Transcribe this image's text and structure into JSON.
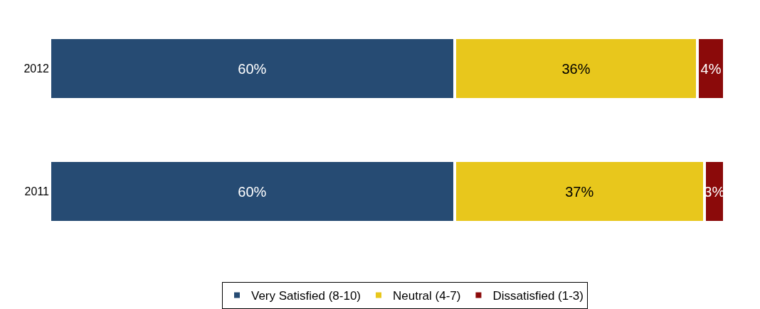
{
  "chart_data": {
    "type": "bar",
    "orientation": "horizontal",
    "stacked": true,
    "categories": [
      "2012",
      "2011"
    ],
    "series": [
      {
        "name": "Very Satisfied (8-10)",
        "color": "#264b73",
        "values": [
          60,
          60
        ],
        "value_labels": [
          "60%",
          "60%"
        ]
      },
      {
        "name": "Neutral (4-7)",
        "color": "#e8c71c",
        "values": [
          36,
          37
        ],
        "value_labels": [
          "36%",
          "37%"
        ]
      },
      {
        "name": "Dissatisfied (1-3)",
        "color": "#8b0a0a",
        "values": [
          4,
          3
        ],
        "value_labels": [
          "4%",
          "3%"
        ]
      }
    ],
    "legend": "bottom"
  }
}
